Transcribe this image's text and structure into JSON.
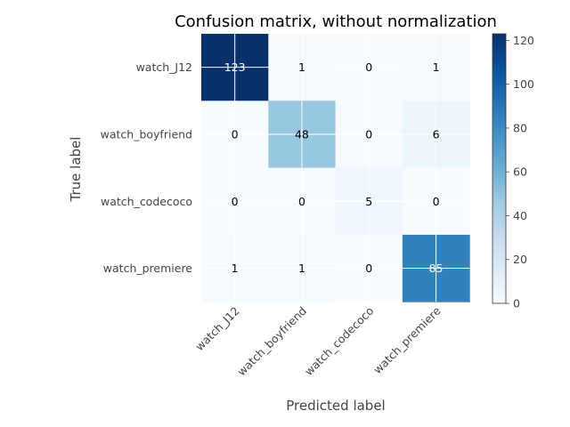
{
  "chart_data": {
    "type": "heatmap",
    "title": "Confusion matrix, without normalization",
    "xlabel": "Predicted label",
    "ylabel": "True label",
    "x_categories": [
      "watch_J12",
      "watch_boyfriend",
      "watch_codecoco",
      "watch_premiere"
    ],
    "y_categories": [
      "watch_J12",
      "watch_boyfriend",
      "watch_codecoco",
      "watch_premiere"
    ],
    "matrix": [
      [
        123,
        1,
        0,
        1
      ],
      [
        0,
        48,
        0,
        6
      ],
      [
        0,
        0,
        5,
        0
      ],
      [
        1,
        1,
        0,
        85
      ]
    ],
    "colorbar": {
      "range": [
        0,
        123
      ],
      "ticks": [
        0,
        20,
        40,
        60,
        80,
        100,
        120
      ],
      "colormap": "Blues"
    },
    "grid": true
  }
}
